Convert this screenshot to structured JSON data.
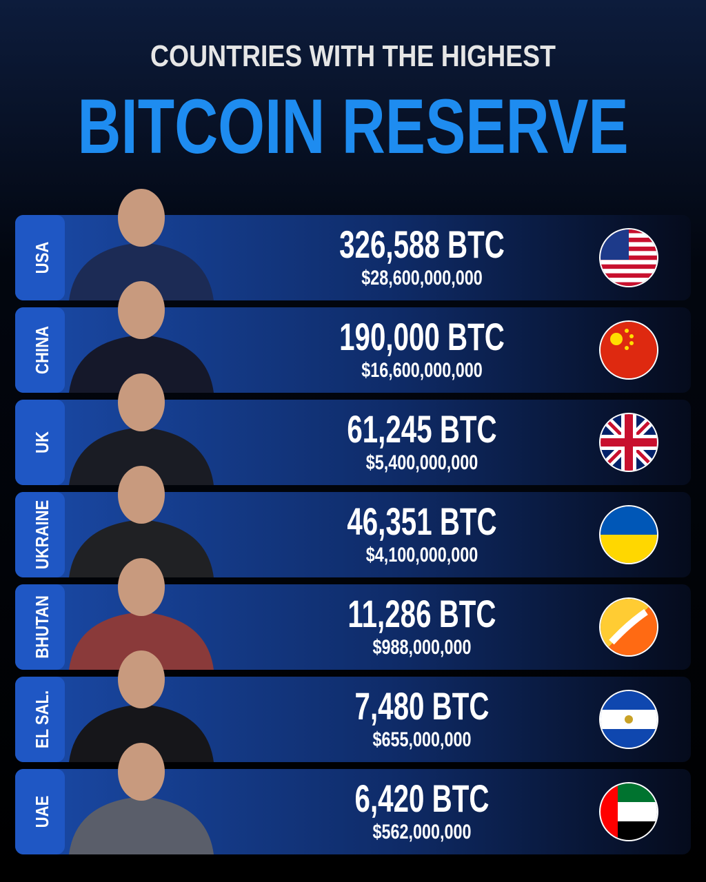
{
  "header": {
    "subtitle": "COUNTRIES WITH THE HIGHEST",
    "title": "BITCOIN RESERVE"
  },
  "rows": [
    {
      "country": "USA",
      "btc": "326,588 BTC",
      "usd": "$28,600,000,000"
    },
    {
      "country": "CHINA",
      "btc": "190,000 BTC",
      "usd": "$16,600,000,000"
    },
    {
      "country": "UK",
      "btc": "61,245 BTC",
      "usd": "$5,400,000,000"
    },
    {
      "country": "UKRAINE",
      "btc": "46,351 BTC",
      "usd": "$4,100,000,000"
    },
    {
      "country": "BHUTAN",
      "btc": "11,286 BTC",
      "usd": "$988,000,000"
    },
    {
      "country": "EL SAL.",
      "btc": "7,480 BTC",
      "usd": "$655,000,000"
    },
    {
      "country": "UAE",
      "btc": "6,420 BTC",
      "usd": "$562,000,000"
    }
  ]
}
